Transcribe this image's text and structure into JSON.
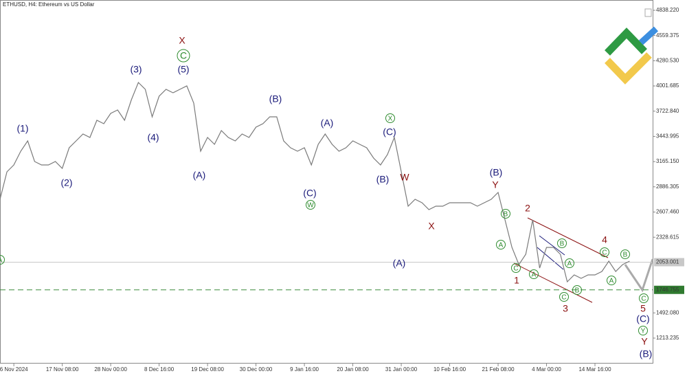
{
  "chart_data": {
    "type": "line",
    "title": "ETHUSD, H4:  Ethereum vs US Dollar",
    "categories": [
      null,
      null,
      "6 Nov 2024",
      null,
      null,
      null,
      null,
      null,
      null,
      "17 Nov 08:00",
      null,
      null,
      null,
      null,
      null,
      null,
      "28 Nov 00:00",
      null,
      null,
      null,
      null,
      null,
      null,
      "8 Dec 16:00",
      null,
      null,
      null,
      null,
      null,
      null,
      "19 Dec 08:00",
      null,
      null,
      null,
      null,
      null,
      null,
      "30 Dec 00:00",
      null,
      null,
      null,
      null,
      null,
      null,
      "9 Jan 16:00",
      null,
      null,
      null,
      null,
      null,
      null,
      "20 Jan 08:00",
      null,
      null,
      null,
      null,
      null,
      null,
      "31 Jan 00:00",
      null,
      null,
      null,
      null,
      null,
      null,
      "10 Feb 16:00",
      null,
      null,
      null,
      null,
      null,
      null,
      "21 Feb 08:00",
      null,
      null,
      null,
      null,
      null,
      null,
      "4 Mar 00:00",
      null,
      null,
      null,
      null,
      null,
      null,
      "14 Mar 16:00",
      null,
      null,
      null,
      null,
      null
    ],
    "series": [
      {
        "name": "ETHUSD",
        "color": "#7a7a7a",
        "values": [
          2748,
          3052,
          3128,
          3280,
          3394,
          3166,
          3128,
          3128,
          3166,
          3090,
          3318,
          3394,
          3470,
          3432,
          3622,
          3584,
          3698,
          3736,
          3622,
          3850,
          4040,
          3964,
          3660,
          3888,
          3964,
          3926,
          3964,
          4002,
          3812,
          3280,
          3432,
          3356,
          3508,
          3432,
          3394,
          3470,
          3432,
          3546,
          3584,
          3660,
          3660,
          3394,
          3318,
          3280,
          3318,
          3128,
          3356,
          3470,
          3356,
          3280,
          3318,
          3394,
          3356,
          3318,
          3204,
          3128,
          3242,
          3432,
          3052,
          2672,
          2748,
          2710,
          2634,
          2672,
          2672,
          2710,
          2710,
          2710,
          2710,
          2672,
          2710,
          2748,
          2824,
          2520,
          2216,
          2026,
          2140,
          2520,
          1988,
          2216,
          2216,
          2140,
          1836,
          1912,
          1874,
          1912,
          1912,
          1950,
          2064,
          1950,
          2026,
          2064
        ]
      }
    ],
    "ylim": [
      924,
      4952
    ],
    "yticks": [
      {
        "value": 4838.22,
        "label": "4838.220"
      },
      {
        "value": 4559.375,
        "label": "4559.375"
      },
      {
        "value": 4280.53,
        "label": "4280.530"
      },
      {
        "value": 4001.685,
        "label": "4001.685"
      },
      {
        "value": 3722.84,
        "label": "3722.840"
      },
      {
        "value": 3443.995,
        "label": "3443.995"
      },
      {
        "value": 3165.15,
        "label": "3165.150"
      },
      {
        "value": 2886.305,
        "label": "2886.305"
      },
      {
        "value": 2607.46,
        "label": "2607.460"
      },
      {
        "value": 2328.615,
        "label": "2328.615"
      },
      {
        "value": 1492.08,
        "label": "1492.080"
      },
      {
        "value": 1213.235,
        "label": "1213.235"
      }
    ],
    "current_price": 2053.001,
    "level_price": 1746.755,
    "annotations": [
      "A",
      "(1)",
      "(2)",
      "(3)",
      "(4)",
      "X",
      "C",
      "(5)",
      "(A)",
      "(B)",
      "(A)",
      "(C)",
      "W",
      "X",
      "(C)",
      "(B)",
      "W",
      "(A)",
      "X",
      "(B)",
      "Y",
      "B",
      "A",
      "C",
      "1",
      "2",
      "A",
      "B",
      "A",
      "C",
      "B",
      "3",
      "4",
      "C",
      "A",
      "B",
      "C",
      "5",
      "(C)",
      "Y",
      "Y",
      "(B)"
    ]
  }
}
